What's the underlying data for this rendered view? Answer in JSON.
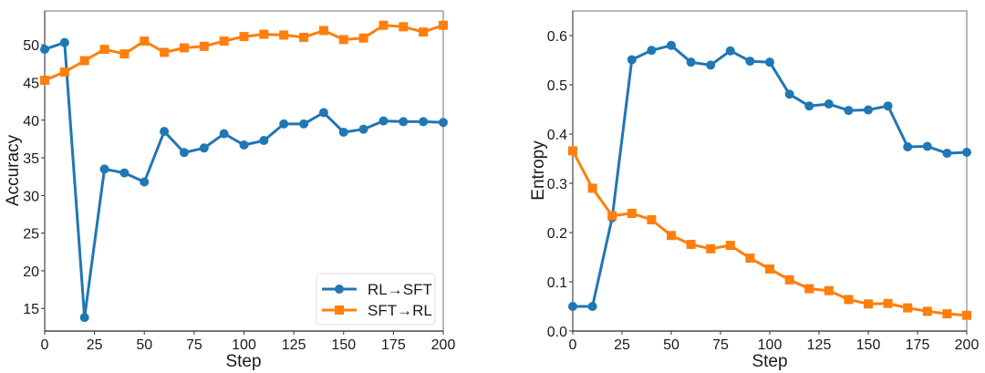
{
  "chart_data": [
    {
      "type": "line",
      "title": "",
      "xlabel": "Step",
      "ylabel": "Accuracy",
      "xlim": [
        0,
        200
      ],
      "ylim": [
        12,
        54.5
      ],
      "xticks": [
        0,
        25,
        50,
        75,
        100,
        125,
        150,
        175,
        200
      ],
      "yticks": [
        15,
        20,
        25,
        30,
        35,
        40,
        45,
        50
      ],
      "grid": false,
      "legend": {
        "placement": "bottom-right",
        "show": true
      },
      "x": [
        0,
        10,
        20,
        30,
        40,
        50,
        60,
        70,
        80,
        90,
        100,
        110,
        120,
        130,
        140,
        150,
        160,
        170,
        180,
        190,
        200
      ],
      "series": [
        {
          "name": "RL→SFT",
          "color": "#1f77b4",
          "marker": "circle",
          "values": [
            49.4,
            50.3,
            13.8,
            33.5,
            33.0,
            31.8,
            38.5,
            35.7,
            36.3,
            38.2,
            36.7,
            37.3,
            39.5,
            39.5,
            41.0,
            38.4,
            38.8,
            39.9,
            39.8,
            39.8,
            39.7
          ]
        },
        {
          "name": "SFT→RL",
          "color": "#ff7f0e",
          "marker": "square",
          "values": [
            45.3,
            46.4,
            47.9,
            49.4,
            48.8,
            50.5,
            49.0,
            49.6,
            49.8,
            50.5,
            51.1,
            51.4,
            51.3,
            51.0,
            51.9,
            50.7,
            50.9,
            52.6,
            52.4,
            51.7,
            52.6
          ]
        }
      ]
    },
    {
      "type": "line",
      "title": "",
      "xlabel": "Step",
      "ylabel": "Entropy",
      "xlim": [
        0,
        200
      ],
      "ylim": [
        0.0,
        0.65
      ],
      "xticks": [
        0,
        25,
        50,
        75,
        100,
        125,
        150,
        175,
        200
      ],
      "yticks": [
        0.0,
        0.1,
        0.2,
        0.3,
        0.4,
        0.5,
        0.6
      ],
      "ytick_labels": [
        "0.0",
        "0.1",
        "0.2",
        "0.3",
        "0.4",
        "0.5",
        "0.6"
      ],
      "grid": false,
      "legend": {
        "show": false
      },
      "x": [
        0,
        10,
        20,
        30,
        40,
        50,
        60,
        70,
        80,
        90,
        100,
        110,
        120,
        130,
        140,
        150,
        160,
        170,
        180,
        190,
        200
      ],
      "series": [
        {
          "name": "RL→SFT",
          "color": "#1f77b4",
          "marker": "circle",
          "values": [
            0.05,
            0.05,
            0.23,
            0.551,
            0.57,
            0.58,
            0.546,
            0.54,
            0.569,
            0.548,
            0.546,
            0.481,
            0.457,
            0.461,
            0.448,
            0.449,
            0.457,
            0.374,
            0.375,
            0.361,
            0.363
          ]
        },
        {
          "name": "SFT→RL",
          "color": "#ff7f0e",
          "marker": "square",
          "values": [
            0.366,
            0.29,
            0.234,
            0.239,
            0.226,
            0.194,
            0.176,
            0.167,
            0.174,
            0.148,
            0.126,
            0.104,
            0.086,
            0.082,
            0.064,
            0.055,
            0.056,
            0.047,
            0.04,
            0.035,
            0.032
          ]
        }
      ]
    }
  ]
}
